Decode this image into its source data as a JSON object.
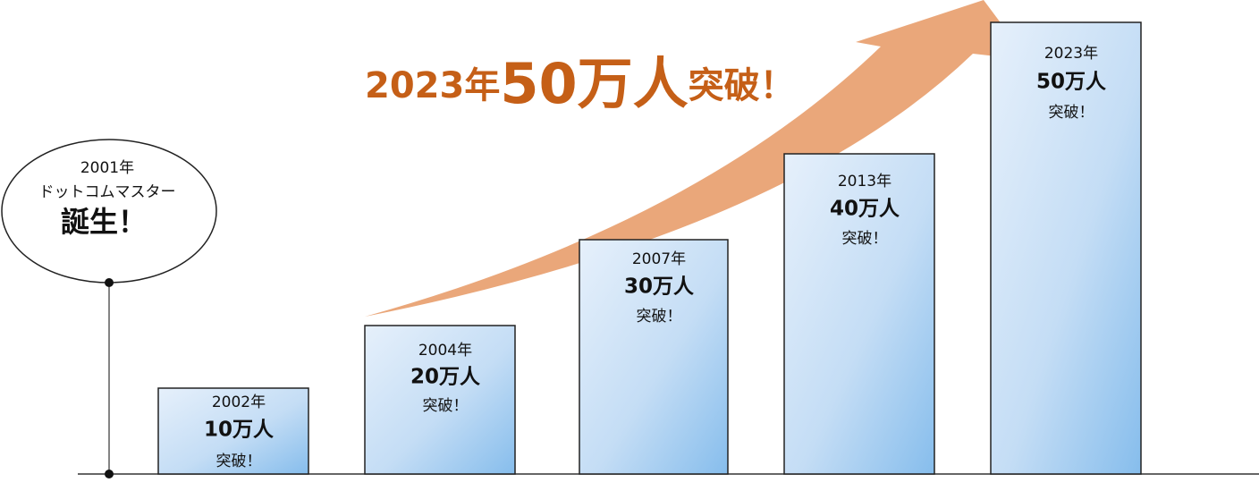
{
  "headline": {
    "prefix": "2023年",
    "big": "50万人",
    "suffix": "突破！"
  },
  "origin": {
    "year": "2001年",
    "name": "ドットコムマスター",
    "event": "誕生！"
  },
  "milestones": [
    {
      "year": "2002年",
      "count": "10万人",
      "note": "突破！"
    },
    {
      "year": "2004年",
      "count": "20万人",
      "note": "突破！"
    },
    {
      "year": "2007年",
      "count": "30万人",
      "note": "突破！"
    },
    {
      "year": "2013年",
      "count": "40万人",
      "note": "突破！"
    },
    {
      "year": "2023年",
      "count": "50万人",
      "note": "突破！"
    }
  ]
}
